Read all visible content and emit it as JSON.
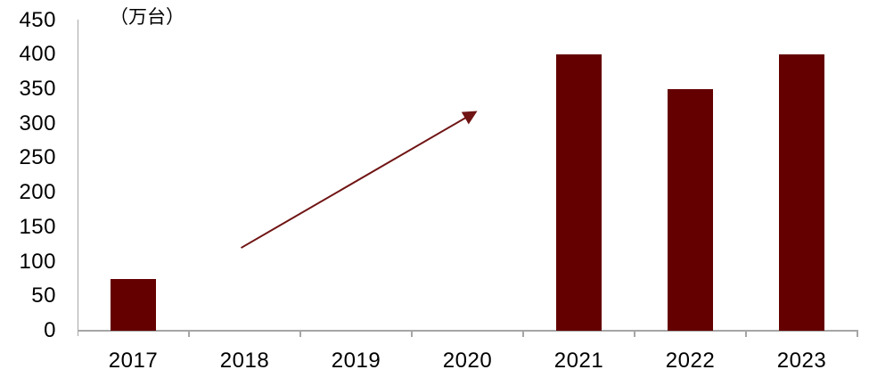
{
  "chart_data": {
    "type": "bar",
    "title": "",
    "unit_label": "（万台）",
    "categories": [
      "2017",
      "2018",
      "2019",
      "2020",
      "2021",
      "2022",
      "2023"
    ],
    "values": [
      75,
      null,
      null,
      null,
      400,
      350,
      400
    ],
    "yticks": [
      0,
      50,
      100,
      150,
      200,
      250,
      300,
      350,
      400,
      450
    ],
    "ylim": [
      0,
      450
    ],
    "grid": false,
    "legend": "none",
    "bar_color": "#640000",
    "arrow_color": "#701414",
    "axis_color": "#a6a6a6",
    "text_color": "#000000",
    "annotation": {
      "type": "arrow",
      "meaning": "upward growth trend across missing years",
      "from_category": "2018",
      "from_value": 120,
      "to_category": "2020",
      "to_value": 310
    }
  }
}
